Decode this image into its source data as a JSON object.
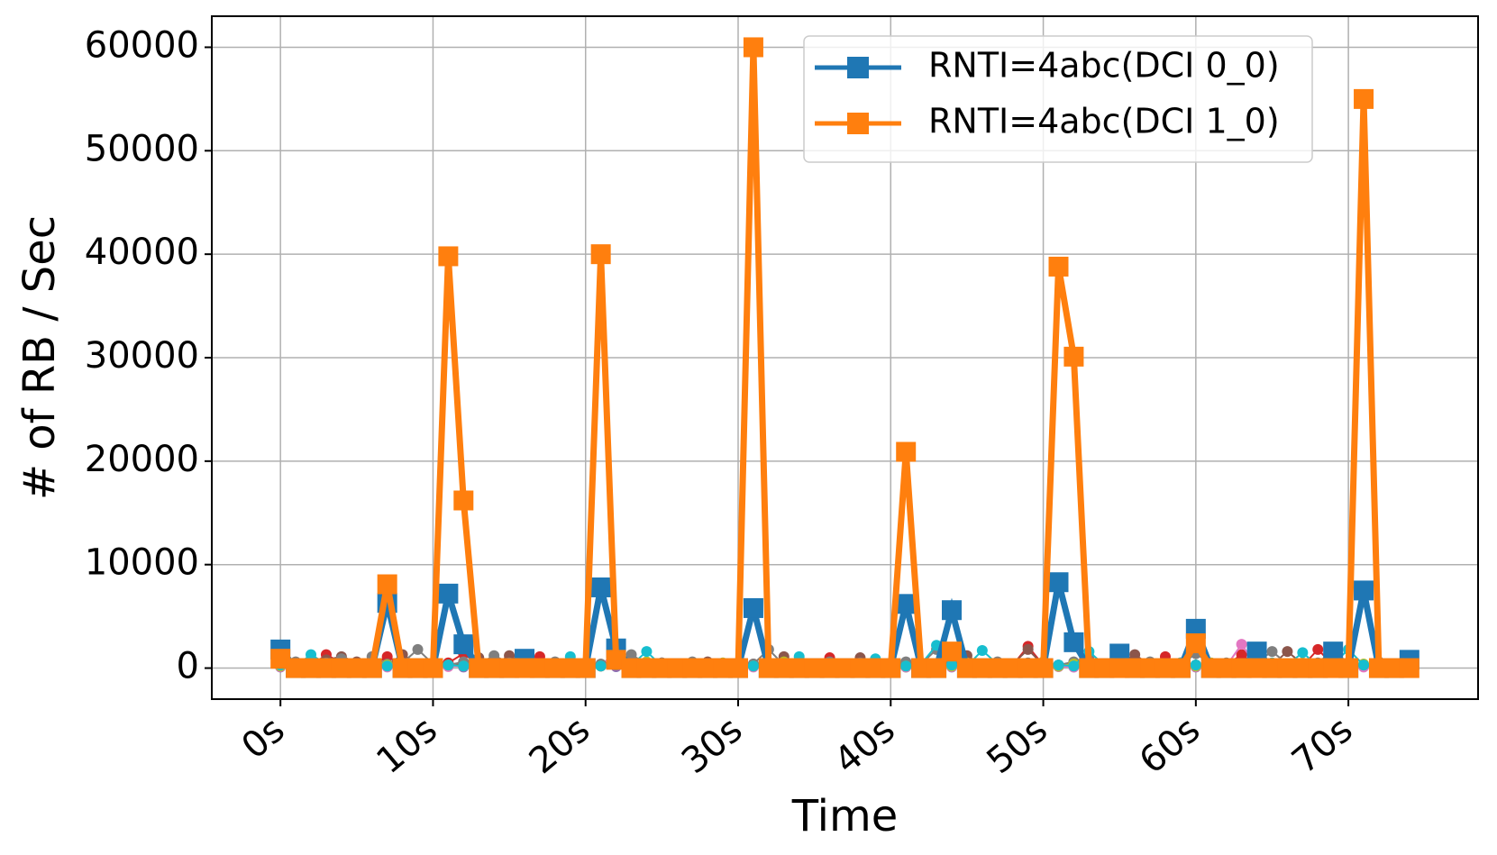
{
  "chart_data": {
    "type": "line",
    "xlabel": "Time",
    "ylabel": "# of RB / Sec",
    "xlim": [
      -4.5,
      78.5
    ],
    "ylim": [
      -3000,
      63000
    ],
    "x_ticks": [
      0,
      10,
      20,
      30,
      40,
      50,
      60,
      70
    ],
    "x_tick_labels": [
      "0s",
      "10s",
      "20s",
      "30s",
      "40s",
      "50s",
      "60s",
      "70s"
    ],
    "y_ticks": [
      0,
      10000,
      20000,
      30000,
      40000,
      50000,
      60000
    ],
    "y_tick_labels": [
      "0",
      "10000",
      "20000",
      "30000",
      "40000",
      "50000",
      "60000"
    ],
    "grid": true,
    "legend_position": "top-right",
    "x": [
      0,
      1,
      2,
      3,
      4,
      5,
      6,
      7,
      8,
      9,
      10,
      11,
      12,
      13,
      14,
      15,
      16,
      17,
      18,
      19,
      20,
      21,
      22,
      23,
      24,
      25,
      26,
      27,
      28,
      29,
      30,
      31,
      32,
      33,
      34,
      35,
      36,
      37,
      38,
      39,
      40,
      41,
      42,
      43,
      44,
      45,
      46,
      47,
      48,
      49,
      50,
      51,
      52,
      53,
      54,
      55,
      56,
      57,
      58,
      59,
      60,
      61,
      62,
      63,
      64,
      65,
      66,
      67,
      68,
      69,
      70,
      71,
      72,
      73,
      74
    ],
    "series": [
      {
        "name": "RNTI=4abc(DCI 0_0)",
        "color": "#1f77b4",
        "marker": "square",
        "values": [
          1800,
          0,
          0,
          0,
          0,
          0,
          0,
          6300,
          0,
          0,
          0,
          7200,
          2300,
          0,
          0,
          0,
          900,
          0,
          0,
          0,
          0,
          7800,
          1900,
          0,
          0,
          0,
          0,
          0,
          0,
          0,
          0,
          5800,
          0,
          0,
          0,
          0,
          0,
          0,
          0,
          0,
          0,
          6200,
          0,
          0,
          5600,
          0,
          0,
          0,
          0,
          0,
          0,
          8300,
          2500,
          0,
          0,
          1400,
          0,
          0,
          0,
          0,
          3800,
          0,
          0,
          0,
          1600,
          0,
          0,
          0,
          0,
          1600,
          0,
          7500,
          0,
          0,
          800
        ]
      },
      {
        "name": "RNTI=4abc(DCI 1_0)",
        "color": "#ff7f0e",
        "marker": "square",
        "values": [
          900,
          0,
          0,
          0,
          0,
          0,
          0,
          8100,
          0,
          0,
          0,
          39800,
          16200,
          0,
          0,
          0,
          0,
          0,
          0,
          0,
          0,
          40000,
          800,
          0,
          0,
          0,
          0,
          0,
          0,
          0,
          0,
          60000,
          0,
          0,
          0,
          0,
          0,
          0,
          0,
          0,
          0,
          20900,
          0,
          0,
          1600,
          0,
          0,
          0,
          0,
          0,
          0,
          38800,
          30100,
          0,
          0,
          0,
          0,
          0,
          0,
          0,
          2400,
          0,
          0,
          0,
          0,
          0,
          0,
          0,
          0,
          0,
          0,
          55000,
          0,
          0,
          0
        ]
      }
    ],
    "minor_series": [
      {
        "color": "#2ca02c",
        "values": [
          200,
          150,
          300,
          100,
          250,
          150,
          200,
          300,
          100,
          250,
          150,
          200,
          150,
          100,
          200,
          150,
          250,
          100,
          200,
          150,
          200,
          300,
          150,
          100,
          200,
          250,
          150,
          200,
          100,
          150,
          250,
          200,
          150,
          300,
          100,
          200,
          150,
          250,
          100,
          200,
          150,
          100,
          200,
          150,
          250,
          100,
          200,
          150,
          300,
          100,
          200,
          150,
          250,
          100,
          200,
          150,
          250,
          100,
          200,
          150,
          300,
          100,
          200,
          150,
          250,
          100,
          200,
          150,
          300,
          100,
          200,
          150,
          250,
          100,
          200
        ]
      },
      {
        "color": "#d62728",
        "values": [
          300,
          400,
          200,
          1300,
          500,
          300,
          200,
          1100,
          300,
          400,
          200,
          500,
          1400,
          300,
          200,
          400,
          300,
          1100,
          200,
          300,
          400,
          200,
          300,
          400,
          200,
          300,
          400,
          200,
          300,
          400,
          200,
          300,
          400,
          200,
          300,
          400,
          1000,
          300,
          200,
          400,
          300,
          200,
          300,
          400,
          1100,
          300,
          200,
          400,
          300,
          2100,
          300,
          200,
          400,
          300,
          200,
          1200,
          300,
          400,
          1100,
          300,
          200,
          400,
          300,
          1300,
          200,
          300,
          400,
          200,
          1800,
          300,
          400,
          200,
          300,
          400,
          200
        ]
      },
      {
        "color": "#9467bd",
        "values": [
          100,
          200,
          150,
          300,
          100,
          200,
          150,
          250,
          600,
          200,
          150,
          300,
          100,
          200,
          150,
          250,
          100,
          200,
          150,
          300,
          100,
          200,
          150,
          250,
          100,
          200,
          150,
          300,
          100,
          200,
          150,
          250,
          100,
          200,
          150,
          300,
          100,
          200,
          150,
          250,
          100,
          200,
          150,
          300,
          100,
          200,
          150,
          250,
          100,
          200,
          150,
          300,
          100,
          200,
          150,
          250,
          100,
          200,
          150,
          300,
          100,
          200,
          150,
          250,
          100,
          200,
          150,
          300,
          100,
          200,
          150,
          250,
          100,
          200,
          150
        ]
      },
      {
        "color": "#8c564b",
        "values": [
          500,
          200,
          300,
          800,
          1100,
          600,
          400,
          300,
          1300,
          400,
          300,
          200,
          500,
          1000,
          300,
          1200,
          400,
          300,
          200,
          600,
          300,
          200,
          1200,
          400,
          300,
          500,
          200,
          400,
          600,
          200,
          300,
          400,
          200,
          1100,
          300,
          200,
          500,
          300,
          1000,
          300,
          200,
          400,
          300,
          200,
          500,
          1200,
          300,
          200,
          400,
          1800,
          300,
          200,
          500,
          300,
          200,
          400,
          1300,
          300,
          200,
          500,
          300,
          200,
          400,
          300,
          1600,
          300,
          1600,
          400,
          300,
          1400,
          300,
          200,
          400,
          300,
          200
        ]
      },
      {
        "color": "#e377c2",
        "values": [
          150,
          100,
          250,
          200,
          100,
          300,
          150,
          100,
          200,
          350,
          100,
          150,
          200,
          100,
          250,
          150,
          100,
          200,
          150,
          300,
          100,
          200,
          1700,
          150,
          100,
          200,
          300,
          150,
          100,
          200,
          150,
          100,
          250,
          200,
          150,
          100,
          300,
          150,
          100,
          200,
          150,
          100,
          200,
          300,
          150,
          100,
          200,
          150,
          100,
          250,
          200,
          150,
          100,
          300,
          150,
          100,
          200,
          150,
          100,
          200,
          150,
          100,
          200,
          2300,
          150,
          100,
          200,
          150,
          100,
          200,
          150,
          100,
          200,
          150,
          100
        ]
      },
      {
        "color": "#7f7f7f",
        "values": [
          400,
          600,
          300,
          500,
          900,
          300,
          1100,
          400,
          500,
          1800,
          400,
          300,
          600,
          400,
          1200,
          500,
          300,
          400,
          600,
          300,
          500,
          400,
          300,
          1300,
          400,
          500,
          300,
          600,
          400,
          300,
          500,
          400,
          1800,
          300,
          500,
          400,
          600,
          300,
          500,
          400,
          300,
          600,
          400,
          1800,
          500,
          300,
          400,
          600,
          300,
          500,
          400,
          300,
          600,
          1100,
          400,
          500,
          300,
          600,
          400,
          300,
          1400,
          400,
          500,
          300,
          600,
          1600,
          400,
          300,
          500,
          1700,
          400,
          300,
          600,
          400,
          500
        ]
      },
      {
        "color": "#bcbd22",
        "values": [
          200,
          300,
          400,
          200,
          300,
          150,
          250,
          300,
          200,
          400,
          150,
          300,
          200,
          500,
          300,
          200,
          400,
          300,
          200,
          150,
          300,
          200,
          400,
          300,
          600,
          200,
          400,
          300,
          200,
          500,
          300,
          200,
          400,
          600,
          300,
          200,
          400,
          300,
          200,
          500,
          300,
          200,
          400,
          300,
          200,
          500,
          300,
          200,
          400,
          300,
          600,
          200,
          400,
          300,
          200,
          500,
          300,
          200,
          400,
          300,
          200,
          500,
          300,
          200,
          400,
          300,
          200,
          500,
          300,
          600,
          200,
          400,
          300,
          200,
          400
        ]
      },
      {
        "color": "#17becf",
        "values": [
          300,
          200,
          1300,
          400,
          200,
          300,
          500,
          200,
          300,
          400,
          200,
          300,
          200,
          400,
          300,
          200,
          500,
          300,
          200,
          1100,
          300,
          200,
          400,
          300,
          1600,
          200,
          300,
          400,
          200,
          300,
          400,
          200,
          300,
          400,
          1100,
          300,
          200,
          400,
          300,
          900,
          300,
          200,
          400,
          2200,
          300,
          200,
          1700,
          400,
          300,
          200,
          400,
          300,
          200,
          1600,
          300,
          200,
          400,
          300,
          200,
          500,
          300,
          200,
          400,
          300,
          200,
          500,
          300,
          1500,
          200,
          400,
          1800,
          300,
          200,
          400,
          300
        ]
      }
    ]
  }
}
